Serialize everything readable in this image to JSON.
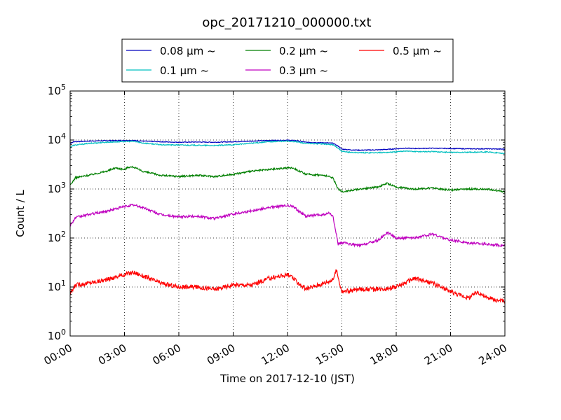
{
  "chart_data": {
    "type": "line",
    "title": "opc_20171210_000000.txt",
    "xlabel": "Time on 2017-12-10 (JST)",
    "ylabel": "Count / L",
    "x_unit": "hours",
    "xlim": [
      0,
      24
    ],
    "ylim": [
      1,
      100000
    ],
    "y_scale": "log",
    "grid": true,
    "legend_position": "top (above plot)",
    "x_ticks": [
      {
        "value": 0,
        "label": "00:00"
      },
      {
        "value": 3,
        "label": "03:00"
      },
      {
        "value": 6,
        "label": "06:00"
      },
      {
        "value": 9,
        "label": "09:00"
      },
      {
        "value": 12,
        "label": "12:00"
      },
      {
        "value": 15,
        "label": "15:00"
      },
      {
        "value": 18,
        "label": "18:00"
      },
      {
        "value": 21,
        "label": "21:00"
      },
      {
        "value": 24,
        "label": "24:00"
      }
    ],
    "y_ticks": [
      {
        "value": 1,
        "base": "10",
        "exp": "0"
      },
      {
        "value": 10,
        "base": "10",
        "exp": "1"
      },
      {
        "value": 100,
        "base": "10",
        "exp": "2"
      },
      {
        "value": 1000,
        "base": "10",
        "exp": "3"
      },
      {
        "value": 10000,
        "base": "10",
        "exp": "4"
      },
      {
        "value": 100000,
        "base": "10",
        "exp": "5"
      }
    ],
    "series": [
      {
        "name": "0.08 μm ~",
        "color": "#0000bf",
        "x": [
          0,
          0.2,
          1,
          2,
          3,
          3.5,
          4,
          5,
          6,
          7,
          8,
          9,
          10,
          11,
          12,
          12.5,
          13,
          14,
          14.5,
          14.8,
          15,
          15.5,
          16,
          17,
          18,
          18.5,
          19,
          20,
          21,
          22,
          23,
          24
        ],
        "values": [
          8500,
          9200,
          9500,
          9700,
          9800,
          9800,
          9500,
          9200,
          9000,
          9100,
          9000,
          9200,
          9500,
          9800,
          9900,
          9700,
          9000,
          8800,
          8600,
          7500,
          6500,
          6300,
          6200,
          6300,
          6600,
          6800,
          6700,
          6800,
          6700,
          6600,
          6600,
          6500
        ]
      },
      {
        "name": "0.1 μm ~",
        "color": "#00bfbf",
        "x": [
          0,
          0.2,
          1,
          2,
          3,
          3.5,
          4,
          5,
          6,
          7,
          8,
          9,
          10,
          11,
          12,
          12.5,
          13,
          14,
          14.5,
          14.8,
          15,
          15.5,
          16,
          17,
          18,
          18.5,
          19,
          20,
          21,
          22,
          23,
          24
        ],
        "values": [
          7200,
          7800,
          8500,
          9000,
          9300,
          9400,
          8700,
          8000,
          7900,
          7800,
          7700,
          8000,
          8600,
          9200,
          9500,
          9200,
          8500,
          8300,
          8000,
          6800,
          5800,
          5600,
          5500,
          5500,
          5700,
          6000,
          5800,
          5800,
          5600,
          5600,
          5700,
          5300
        ]
      },
      {
        "name": "0.2 μm ~",
        "color": "#007f00",
        "x": [
          0,
          0.3,
          1,
          2,
          2.5,
          3,
          3.2,
          3.5,
          4,
          5,
          6,
          7,
          8,
          9,
          10,
          11,
          12,
          12.3,
          13,
          14,
          14.5,
          14.8,
          15,
          16,
          17,
          17.5,
          18,
          19,
          20,
          21,
          22,
          23,
          24
        ],
        "values": [
          1200,
          1700,
          1900,
          2300,
          2700,
          2500,
          2800,
          2800,
          2300,
          1900,
          1800,
          1900,
          1800,
          2000,
          2300,
          2500,
          2700,
          2700,
          2000,
          1900,
          1700,
          1000,
          880,
          1000,
          1100,
          1300,
          1100,
          1000,
          1050,
          950,
          1000,
          1000,
          880
        ]
      },
      {
        "name": "0.3 μm ~",
        "color": "#bf00bf",
        "x": [
          0,
          0.3,
          1,
          2,
          3,
          3.5,
          4,
          5,
          6,
          7,
          8,
          9,
          10,
          11,
          12,
          12.3,
          13,
          14,
          14.3,
          14.5,
          14.8,
          15,
          16,
          17,
          17.5,
          18,
          19,
          20,
          21,
          22,
          23,
          24
        ],
        "values": [
          180,
          260,
          300,
          350,
          440,
          470,
          420,
          300,
          270,
          280,
          250,
          310,
          360,
          420,
          460,
          440,
          280,
          300,
          320,
          280,
          75,
          80,
          70,
          90,
          130,
          100,
          100,
          120,
          90,
          80,
          75,
          70
        ]
      },
      {
        "name": "0.5 μm ~",
        "color": "#ff0000",
        "x": [
          0,
          0.3,
          1,
          2,
          3,
          3.5,
          4,
          5,
          6,
          7,
          8,
          9,
          10,
          11,
          12,
          12.3,
          13,
          14,
          14.5,
          14.7,
          15,
          16,
          17,
          18,
          19,
          20,
          21,
          22,
          22.5,
          23,
          24
        ],
        "values": [
          7,
          11,
          12,
          14,
          18,
          20,
          17,
          12,
          10,
          10,
          9,
          11,
          11,
          15,
          18,
          15,
          9,
          12,
          14,
          22,
          8,
          9,
          9,
          10,
          15,
          12,
          8,
          6,
          8,
          6,
          5
        ]
      }
    ]
  }
}
